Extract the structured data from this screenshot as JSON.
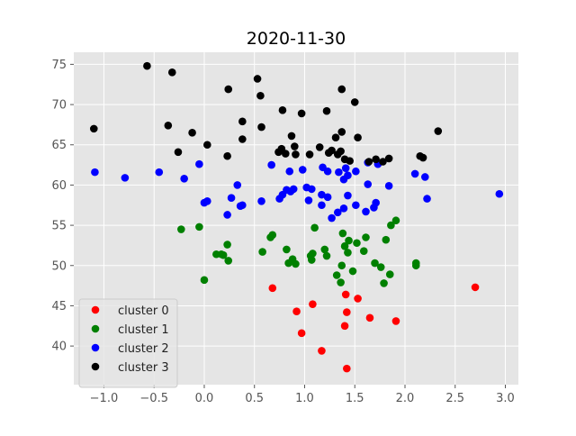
{
  "chart_data": {
    "type": "scatter",
    "title": "2020-11-30",
    "xlabel": "",
    "ylabel": "",
    "xlim": [
      -1.3,
      3.13
    ],
    "ylim": [
      35.2,
      76.5
    ],
    "xticks": [
      -1.0,
      -0.5,
      0.0,
      0.5,
      1.0,
      1.5,
      2.0,
      2.5,
      3.0
    ],
    "xtick_labels": [
      "−1.0",
      "−0.5",
      "0.0",
      "0.5",
      "1.0",
      "1.5",
      "2.0",
      "2.5",
      "3.0"
    ],
    "yticks": [
      40,
      45,
      50,
      55,
      60,
      65,
      70,
      75
    ],
    "ytick_labels": [
      "40",
      "45",
      "50",
      "55",
      "60",
      "65",
      "70",
      "75"
    ],
    "grid": true,
    "legend_position": "lower-left",
    "background": "#e5e5e5",
    "grid_color": "#ffffff",
    "series": [
      {
        "name": "cluster 0",
        "color": "#ff0000",
        "points": [
          [
            0.68,
            47.2
          ],
          [
            0.92,
            44.3
          ],
          [
            0.97,
            41.6
          ],
          [
            1.08,
            45.2
          ],
          [
            1.17,
            39.4
          ],
          [
            1.41,
            46.4
          ],
          [
            1.42,
            44.2
          ],
          [
            1.4,
            42.5
          ],
          [
            1.42,
            37.2
          ],
          [
            1.53,
            45.9
          ],
          [
            1.65,
            43.5
          ],
          [
            1.91,
            43.1
          ],
          [
            2.7,
            47.3
          ]
        ]
      },
      {
        "name": "cluster 1",
        "color": "#008000",
        "points": [
          [
            -0.23,
            54.5
          ],
          [
            -0.05,
            54.8
          ],
          [
            0.0,
            48.2
          ],
          [
            0.12,
            51.4
          ],
          [
            0.17,
            51.4
          ],
          [
            0.19,
            51.3
          ],
          [
            0.23,
            52.6
          ],
          [
            0.24,
            50.6
          ],
          [
            0.58,
            51.7
          ],
          [
            0.66,
            53.5
          ],
          [
            0.68,
            53.8
          ],
          [
            0.82,
            52.0
          ],
          [
            0.84,
            50.3
          ],
          [
            0.88,
            50.8
          ],
          [
            0.91,
            50.2
          ],
          [
            1.06,
            51.2
          ],
          [
            1.07,
            50.7
          ],
          [
            1.08,
            51.5
          ],
          [
            1.1,
            54.7
          ],
          [
            1.2,
            52.0
          ],
          [
            1.22,
            51.2
          ],
          [
            1.32,
            48.8
          ],
          [
            1.36,
            47.9
          ],
          [
            1.37,
            50.0
          ],
          [
            1.38,
            54.0
          ],
          [
            1.4,
            52.4
          ],
          [
            1.43,
            51.6
          ],
          [
            1.44,
            53.1
          ],
          [
            1.48,
            49.3
          ],
          [
            1.52,
            52.8
          ],
          [
            1.59,
            51.8
          ],
          [
            1.61,
            53.5
          ],
          [
            1.7,
            50.3
          ],
          [
            1.76,
            49.8
          ],
          [
            1.79,
            47.8
          ],
          [
            1.81,
            53.2
          ],
          [
            1.85,
            48.9
          ],
          [
            1.86,
            55.0
          ],
          [
            1.91,
            55.6
          ],
          [
            2.11,
            50.0
          ],
          [
            2.11,
            50.3
          ]
        ]
      },
      {
        "name": "cluster 2",
        "color": "#0000ff",
        "points": [
          [
            -1.09,
            61.6
          ],
          [
            -0.79,
            60.9
          ],
          [
            -0.45,
            61.6
          ],
          [
            -0.2,
            60.8
          ],
          [
            -0.05,
            62.6
          ],
          [
            0.0,
            57.8
          ],
          [
            0.03,
            58.0
          ],
          [
            0.23,
            56.3
          ],
          [
            0.27,
            58.4
          ],
          [
            0.33,
            60.0
          ],
          [
            0.36,
            57.4
          ],
          [
            0.38,
            57.5
          ],
          [
            0.57,
            58.0
          ],
          [
            0.67,
            62.5
          ],
          [
            0.75,
            58.3
          ],
          [
            0.78,
            58.8
          ],
          [
            0.82,
            59.4
          ],
          [
            0.85,
            61.7
          ],
          [
            0.86,
            59.2
          ],
          [
            0.89,
            59.5
          ],
          [
            0.98,
            61.9
          ],
          [
            1.02,
            59.7
          ],
          [
            1.04,
            58.1
          ],
          [
            1.07,
            59.5
          ],
          [
            1.17,
            58.8
          ],
          [
            1.18,
            62.2
          ],
          [
            1.17,
            57.5
          ],
          [
            1.23,
            61.7
          ],
          [
            1.23,
            58.5
          ],
          [
            1.27,
            55.9
          ],
          [
            1.33,
            56.6
          ],
          [
            1.34,
            61.6
          ],
          [
            1.39,
            60.7
          ],
          [
            1.39,
            57.1
          ],
          [
            1.41,
            62.1
          ],
          [
            1.43,
            58.7
          ],
          [
            1.43,
            61.2
          ],
          [
            1.51,
            61.7
          ],
          [
            1.51,
            57.5
          ],
          [
            1.61,
            56.7
          ],
          [
            1.63,
            62.8
          ],
          [
            1.63,
            60.1
          ],
          [
            1.69,
            57.2
          ],
          [
            1.71,
            57.8
          ],
          [
            1.73,
            62.6
          ],
          [
            1.84,
            59.9
          ],
          [
            2.1,
            61.4
          ],
          [
            2.2,
            61.0
          ],
          [
            2.22,
            58.3
          ],
          [
            2.94,
            58.9
          ]
        ]
      },
      {
        "name": "cluster 3",
        "color": "#000000",
        "points": [
          [
            -1.1,
            67.0
          ],
          [
            -0.57,
            74.8
          ],
          [
            -0.36,
            67.4
          ],
          [
            -0.32,
            74.0
          ],
          [
            -0.26,
            64.1
          ],
          [
            -0.12,
            66.5
          ],
          [
            0.03,
            65.0
          ],
          [
            0.23,
            63.6
          ],
          [
            0.24,
            71.9
          ],
          [
            0.38,
            67.9
          ],
          [
            0.38,
            65.7
          ],
          [
            0.53,
            73.2
          ],
          [
            0.56,
            71.1
          ],
          [
            0.57,
            67.2
          ],
          [
            0.74,
            64.1
          ],
          [
            0.77,
            64.5
          ],
          [
            0.78,
            69.3
          ],
          [
            0.81,
            63.9
          ],
          [
            0.87,
            66.1
          ],
          [
            0.9,
            64.8
          ],
          [
            0.91,
            63.8
          ],
          [
            0.97,
            68.9
          ],
          [
            1.05,
            63.8
          ],
          [
            1.15,
            64.7
          ],
          [
            1.22,
            69.2
          ],
          [
            1.24,
            64.0
          ],
          [
            1.27,
            64.3
          ],
          [
            1.31,
            65.9
          ],
          [
            1.33,
            63.8
          ],
          [
            1.36,
            64.2
          ],
          [
            1.37,
            66.6
          ],
          [
            1.37,
            71.9
          ],
          [
            1.4,
            63.2
          ],
          [
            1.45,
            63.0
          ],
          [
            1.5,
            70.3
          ],
          [
            1.53,
            65.9
          ],
          [
            1.64,
            62.9
          ],
          [
            1.71,
            63.2
          ],
          [
            1.78,
            62.9
          ],
          [
            1.84,
            63.3
          ],
          [
            2.15,
            63.6
          ],
          [
            2.18,
            63.4
          ],
          [
            2.33,
            66.7
          ]
        ]
      }
    ]
  }
}
